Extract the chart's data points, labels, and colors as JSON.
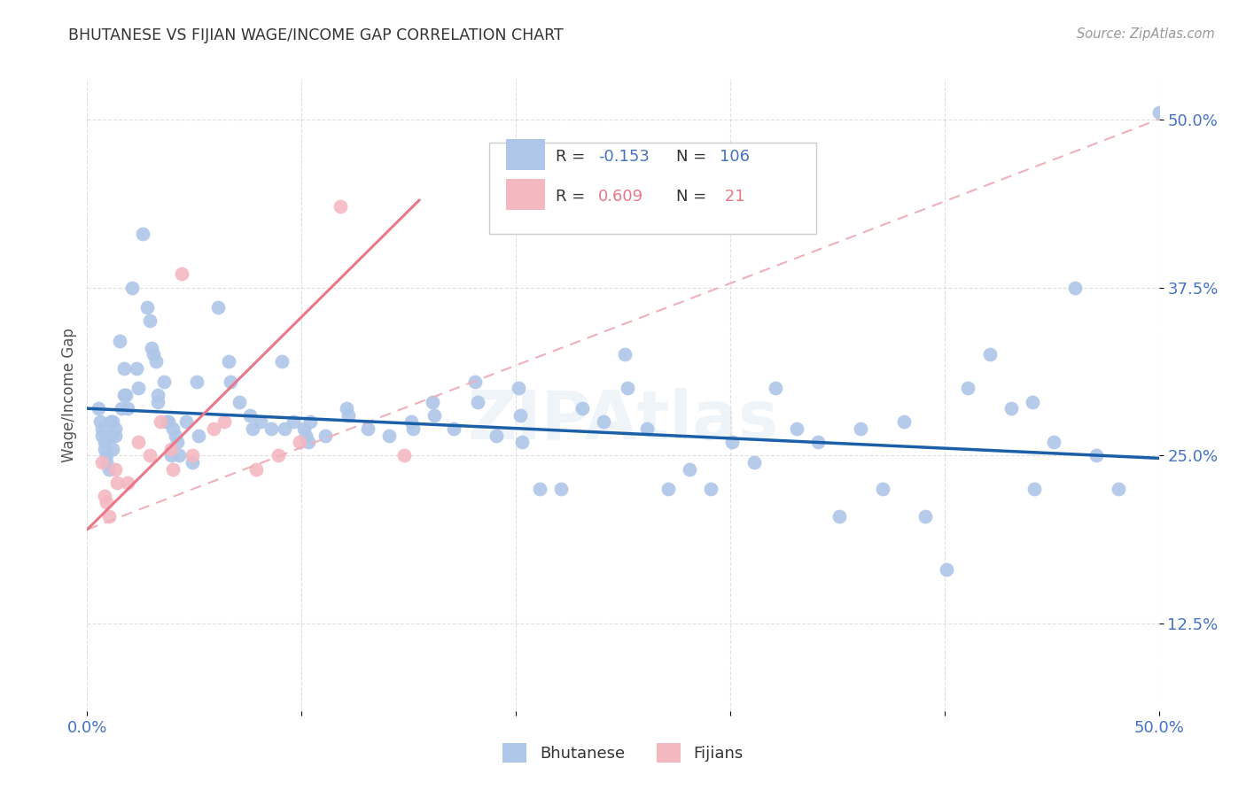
{
  "title": "BHUTANESE VS FIJIAN WAGE/INCOME GAP CORRELATION CHART",
  "source": "Source: ZipAtlas.com",
  "ylabel": "Wage/Income Gap",
  "xlim": [
    0.0,
    0.5
  ],
  "ylim": [
    0.06,
    0.53
  ],
  "xticks": [
    0.0,
    0.1,
    0.2,
    0.3,
    0.4,
    0.5
  ],
  "xticklabels": [
    "0.0%",
    "",
    "",
    "",
    "",
    "50.0%"
  ],
  "ytick_positions": [
    0.125,
    0.25,
    0.375,
    0.5
  ],
  "ytick_labels": [
    "12.5%",
    "25.0%",
    "37.5%",
    "50.0%"
  ],
  "bhutanese_color": "#aec6e8",
  "fijian_color": "#f4b8c1",
  "bhutanese_line_color": "#1a5fa8",
  "fijian_line_color": "#e8788a",
  "fijian_dashed_color": "#f0b0ba",
  "bhutanese_R": -0.153,
  "bhutanese_N": 106,
  "fijian_R": 0.609,
  "fijian_N": 21,
  "grid_color": "#cccccc",
  "background_color": "#ffffff",
  "title_color": "#333333",
  "axis_label_color": "#555555",
  "tick_color": "#4472c4",
  "legend_color": "#4472c4",
  "fijian_legend_color": "#e8788a",
  "watermark": "ZIPAtlas",
  "bhutanese_points": [
    [
      0.005,
      0.285
    ],
    [
      0.006,
      0.275
    ],
    [
      0.007,
      0.27
    ],
    [
      0.007,
      0.265
    ],
    [
      0.008,
      0.26
    ],
    [
      0.008,
      0.255
    ],
    [
      0.009,
      0.25
    ],
    [
      0.009,
      0.245
    ],
    [
      0.01,
      0.24
    ],
    [
      0.011,
      0.275
    ],
    [
      0.011,
      0.265
    ],
    [
      0.012,
      0.255
    ],
    [
      0.012,
      0.275
    ],
    [
      0.013,
      0.265
    ],
    [
      0.013,
      0.27
    ],
    [
      0.015,
      0.335
    ],
    [
      0.016,
      0.285
    ],
    [
      0.017,
      0.315
    ],
    [
      0.017,
      0.295
    ],
    [
      0.018,
      0.295
    ],
    [
      0.019,
      0.285
    ],
    [
      0.021,
      0.375
    ],
    [
      0.023,
      0.315
    ],
    [
      0.024,
      0.3
    ],
    [
      0.026,
      0.415
    ],
    [
      0.028,
      0.36
    ],
    [
      0.029,
      0.35
    ],
    [
      0.03,
      0.33
    ],
    [
      0.031,
      0.325
    ],
    [
      0.032,
      0.32
    ],
    [
      0.033,
      0.295
    ],
    [
      0.033,
      0.29
    ],
    [
      0.036,
      0.305
    ],
    [
      0.037,
      0.275
    ],
    [
      0.038,
      0.275
    ],
    [
      0.039,
      0.25
    ],
    [
      0.04,
      0.27
    ],
    [
      0.041,
      0.265
    ],
    [
      0.042,
      0.26
    ],
    [
      0.043,
      0.25
    ],
    [
      0.046,
      0.275
    ],
    [
      0.049,
      0.245
    ],
    [
      0.051,
      0.305
    ],
    [
      0.052,
      0.265
    ],
    [
      0.061,
      0.36
    ],
    [
      0.066,
      0.32
    ],
    [
      0.067,
      0.305
    ],
    [
      0.071,
      0.29
    ],
    [
      0.076,
      0.28
    ],
    [
      0.077,
      0.27
    ],
    [
      0.081,
      0.275
    ],
    [
      0.086,
      0.27
    ],
    [
      0.091,
      0.32
    ],
    [
      0.092,
      0.27
    ],
    [
      0.096,
      0.275
    ],
    [
      0.101,
      0.27
    ],
    [
      0.102,
      0.265
    ],
    [
      0.103,
      0.26
    ],
    [
      0.104,
      0.275
    ],
    [
      0.111,
      0.265
    ],
    [
      0.121,
      0.285
    ],
    [
      0.122,
      0.28
    ],
    [
      0.131,
      0.27
    ],
    [
      0.141,
      0.265
    ],
    [
      0.151,
      0.275
    ],
    [
      0.152,
      0.27
    ],
    [
      0.161,
      0.29
    ],
    [
      0.162,
      0.28
    ],
    [
      0.171,
      0.27
    ],
    [
      0.181,
      0.305
    ],
    [
      0.182,
      0.29
    ],
    [
      0.191,
      0.265
    ],
    [
      0.201,
      0.3
    ],
    [
      0.202,
      0.28
    ],
    [
      0.203,
      0.26
    ],
    [
      0.211,
      0.225
    ],
    [
      0.221,
      0.225
    ],
    [
      0.231,
      0.285
    ],
    [
      0.241,
      0.275
    ],
    [
      0.251,
      0.325
    ],
    [
      0.252,
      0.3
    ],
    [
      0.261,
      0.27
    ],
    [
      0.271,
      0.225
    ],
    [
      0.281,
      0.24
    ],
    [
      0.291,
      0.225
    ],
    [
      0.301,
      0.26
    ],
    [
      0.311,
      0.245
    ],
    [
      0.321,
      0.3
    ],
    [
      0.331,
      0.27
    ],
    [
      0.341,
      0.26
    ],
    [
      0.351,
      0.205
    ],
    [
      0.361,
      0.27
    ],
    [
      0.371,
      0.225
    ],
    [
      0.381,
      0.275
    ],
    [
      0.391,
      0.205
    ],
    [
      0.401,
      0.165
    ],
    [
      0.411,
      0.3
    ],
    [
      0.421,
      0.325
    ],
    [
      0.431,
      0.285
    ],
    [
      0.441,
      0.29
    ],
    [
      0.442,
      0.225
    ],
    [
      0.451,
      0.26
    ],
    [
      0.461,
      0.375
    ],
    [
      0.471,
      0.25
    ],
    [
      0.481,
      0.225
    ],
    [
      0.5,
      0.505
    ]
  ],
  "fijian_points": [
    [
      0.007,
      0.245
    ],
    [
      0.008,
      0.22
    ],
    [
      0.009,
      0.215
    ],
    [
      0.01,
      0.205
    ],
    [
      0.013,
      0.24
    ],
    [
      0.014,
      0.23
    ],
    [
      0.019,
      0.23
    ],
    [
      0.024,
      0.26
    ],
    [
      0.029,
      0.25
    ],
    [
      0.034,
      0.275
    ],
    [
      0.039,
      0.255
    ],
    [
      0.04,
      0.24
    ],
    [
      0.044,
      0.385
    ],
    [
      0.049,
      0.25
    ],
    [
      0.059,
      0.27
    ],
    [
      0.064,
      0.275
    ],
    [
      0.079,
      0.24
    ],
    [
      0.089,
      0.25
    ],
    [
      0.099,
      0.26
    ],
    [
      0.118,
      0.435
    ],
    [
      0.148,
      0.25
    ]
  ],
  "bhutanese_line": {
    "x0": 0.0,
    "x1": 0.5,
    "y0": 0.285,
    "y1": 0.248
  },
  "fijian_line": {
    "x0": 0.0,
    "x1": 0.155,
    "y0": 0.195,
    "y1": 0.44
  },
  "fijian_dashed_line": {
    "x0": 0.0,
    "x1": 0.5,
    "y0": 0.195,
    "y1": 0.5
  }
}
